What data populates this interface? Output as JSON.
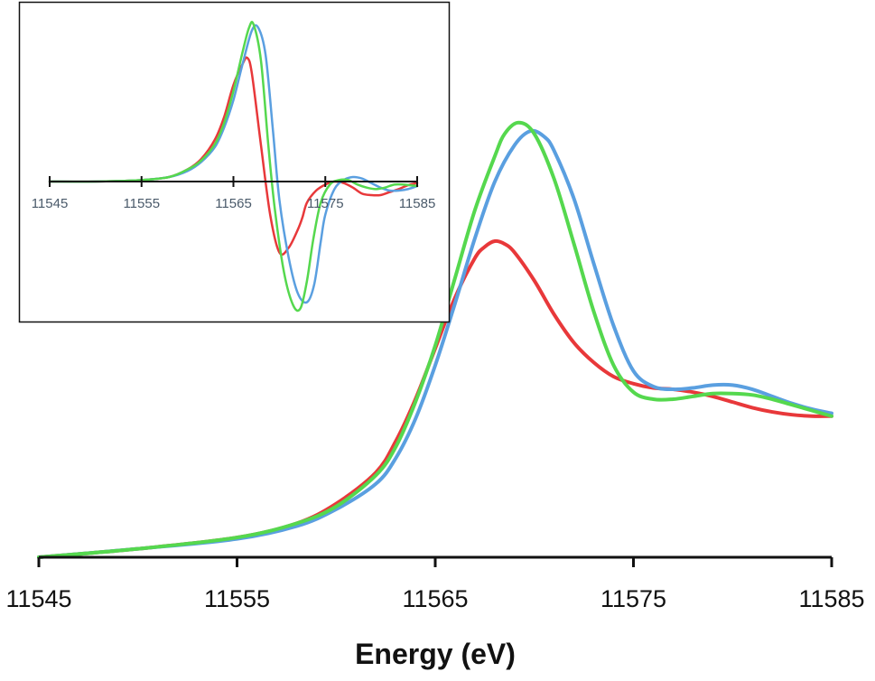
{
  "chart_data": [
    {
      "type": "line",
      "xlabel": "Energy (eV)",
      "ylabel": "",
      "xlim": [
        11545,
        11585
      ],
      "ylim": [
        0,
        1.6
      ],
      "x_ticks": [
        "11545",
        "11555",
        "11565",
        "11575",
        "11585"
      ],
      "grid": false,
      "series": [
        {
          "color": "#e8383a",
          "x": [
            11545,
            11550,
            11555,
            11558,
            11560,
            11562,
            11563,
            11564,
            11565,
            11566,
            11567,
            11567.5,
            11568,
            11568.5,
            11569,
            11570,
            11571,
            11572,
            11573,
            11574,
            11575,
            11576,
            11577,
            11578,
            11579,
            11580,
            11581,
            11582,
            11583,
            11584,
            11585
          ],
          "y": [
            0.0,
            0.03,
            0.07,
            0.12,
            0.19,
            0.3,
            0.41,
            0.56,
            0.74,
            0.92,
            1.06,
            1.1,
            1.12,
            1.11,
            1.08,
            0.98,
            0.86,
            0.76,
            0.69,
            0.64,
            0.615,
            0.6,
            0.595,
            0.585,
            0.57,
            0.55,
            0.53,
            0.515,
            0.505,
            0.5,
            0.5
          ]
        },
        {
          "color": "#5a9fe0",
          "x": [
            11545,
            11550,
            11555,
            11558,
            11560,
            11562,
            11563,
            11564,
            11565,
            11566,
            11567,
            11568,
            11569,
            11569.8,
            11570.5,
            11571,
            11572,
            11573,
            11574,
            11575,
            11576,
            11577,
            11578,
            11579,
            11580,
            11581,
            11582,
            11583,
            11584,
            11585
          ],
          "y": [
            0.0,
            0.03,
            0.065,
            0.11,
            0.17,
            0.26,
            0.35,
            0.49,
            0.68,
            0.9,
            1.13,
            1.33,
            1.46,
            1.51,
            1.49,
            1.44,
            1.27,
            1.04,
            0.82,
            0.66,
            0.605,
            0.595,
            0.6,
            0.61,
            0.61,
            0.595,
            0.57,
            0.545,
            0.525,
            0.51
          ]
        },
        {
          "color": "#55d84e",
          "x": [
            11545,
            11550,
            11555,
            11558,
            11560,
            11562,
            11563,
            11564,
            11565,
            11566,
            11567,
            11568,
            11568.5,
            11569.2,
            11570,
            11571,
            11572,
            11573,
            11574,
            11575,
            11576,
            11577,
            11578,
            11579,
            11580,
            11581,
            11582,
            11583,
            11584,
            11585
          ],
          "y": [
            0.0,
            0.03,
            0.07,
            0.12,
            0.18,
            0.29,
            0.39,
            0.55,
            0.75,
            0.99,
            1.23,
            1.42,
            1.5,
            1.54,
            1.5,
            1.34,
            1.11,
            0.87,
            0.68,
            0.585,
            0.56,
            0.56,
            0.57,
            0.58,
            0.58,
            0.575,
            0.56,
            0.54,
            0.52,
            0.5
          ]
        }
      ]
    },
    {
      "type": "line",
      "xlabel": "",
      "ylabel": "",
      "xlim": [
        11545,
        11585
      ],
      "ylim": [
        -0.42,
        0.45
      ],
      "x_ticks": [
        "11545",
        "11555",
        "11565",
        "11575",
        "11585"
      ],
      "grid": false,
      "series": [
        {
          "color": "#e8383a",
          "x": [
            11545,
            11550,
            11555,
            11558,
            11560,
            11561.5,
            11563,
            11564,
            11565,
            11566,
            11566.5,
            11567,
            11568,
            11569,
            11570,
            11571,
            11572,
            11572.5,
            11573,
            11574,
            11575,
            11576,
            11577,
            11578,
            11579,
            11580,
            11581,
            11582,
            11583,
            11584,
            11585
          ],
          "y": [
            0.0,
            0.0,
            0.005,
            0.015,
            0.04,
            0.075,
            0.14,
            0.215,
            0.32,
            0.39,
            0.41,
            0.36,
            0.12,
            -0.11,
            -0.235,
            -0.22,
            -0.16,
            -0.12,
            -0.07,
            -0.03,
            -0.01,
            0.0,
            -0.005,
            -0.02,
            -0.04,
            -0.045,
            -0.045,
            -0.035,
            -0.025,
            -0.012,
            -0.005
          ]
        },
        {
          "color": "#5a9fe0",
          "x": [
            11545,
            11550,
            11555,
            11558,
            11560,
            11561.5,
            11563,
            11564,
            11565,
            11566,
            11567,
            11567.7,
            11568.5,
            11569.3,
            11570,
            11571,
            11572,
            11573,
            11573.8,
            11574.5,
            11575,
            11576,
            11577,
            11578,
            11579,
            11580,
            11581,
            11582,
            11583,
            11584,
            11585
          ],
          "y": [
            0.0,
            0.0,
            0.005,
            0.015,
            0.035,
            0.065,
            0.115,
            0.18,
            0.27,
            0.39,
            0.5,
            0.51,
            0.42,
            0.17,
            -0.06,
            -0.25,
            -0.37,
            -0.4,
            -0.34,
            -0.2,
            -0.11,
            -0.025,
            0.005,
            0.015,
            0.01,
            -0.005,
            -0.02,
            -0.03,
            -0.03,
            -0.025,
            -0.015
          ]
        },
        {
          "color": "#55d84e",
          "x": [
            11545,
            11550,
            11555,
            11558,
            11560,
            11561.5,
            11563,
            11564,
            11565,
            11566,
            11566.7,
            11567.2,
            11568,
            11568.8,
            11569.5,
            11570.5,
            11571.5,
            11572.3,
            11573,
            11573.7,
            11574.5,
            11575.5,
            11576.5,
            11577.5,
            11578.5,
            11579.5,
            11580.5,
            11581.5,
            11582.5,
            11583.5,
            11585
          ],
          "y": [
            0.0,
            0.0,
            0.005,
            0.015,
            0.04,
            0.07,
            0.125,
            0.195,
            0.3,
            0.43,
            0.51,
            0.52,
            0.4,
            0.12,
            -0.09,
            -0.3,
            -0.41,
            -0.42,
            -0.33,
            -0.19,
            -0.07,
            -0.01,
            0.005,
            0.005,
            -0.01,
            -0.02,
            -0.025,
            -0.02,
            -0.01,
            -0.01,
            -0.015
          ]
        }
      ]
    }
  ]
}
